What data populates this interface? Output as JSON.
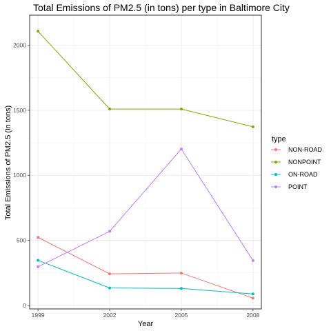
{
  "chart_data": {
    "type": "line",
    "title": "Total Emissions of PM2.5 (in tons) per type in Baltimore City",
    "xlabel": "Year",
    "ylabel": "Total Emissions of PM2.5 (in tons)",
    "x": [
      1999,
      2002,
      2005,
      2008
    ],
    "x_tick_labels": [
      "1999",
      "2002",
      "2005",
      "2008"
    ],
    "y_ticks": [
      0,
      500,
      1000,
      1500,
      2000
    ],
    "y_tick_labels": [
      "0",
      "500",
      "1000",
      "1500",
      "2000"
    ],
    "xlim": [
      1998.65,
      2008.35
    ],
    "ylim": [
      -27,
      2231
    ],
    "grid": true,
    "legend_title": "type",
    "legend_position": "right",
    "series": [
      {
        "name": "NON-ROAD",
        "color": "#F8766D",
        "values": [
          522.94,
          242.66,
          248.93,
          55.82
        ]
      },
      {
        "name": "NONPOINT",
        "color": "#7CAE00",
        "values": [
          2107.63,
          1509.5,
          1509.5,
          1373.21
        ]
      },
      {
        "name": "ON-ROAD",
        "color": "#00BFC4",
        "values": [
          346.82,
          134.31,
          130.43,
          88.28
        ]
      },
      {
        "name": "POINT",
        "color": "#C77CFF",
        "values": [
          296.8,
          569.26,
          1202.49,
          344.98
        ]
      }
    ]
  }
}
